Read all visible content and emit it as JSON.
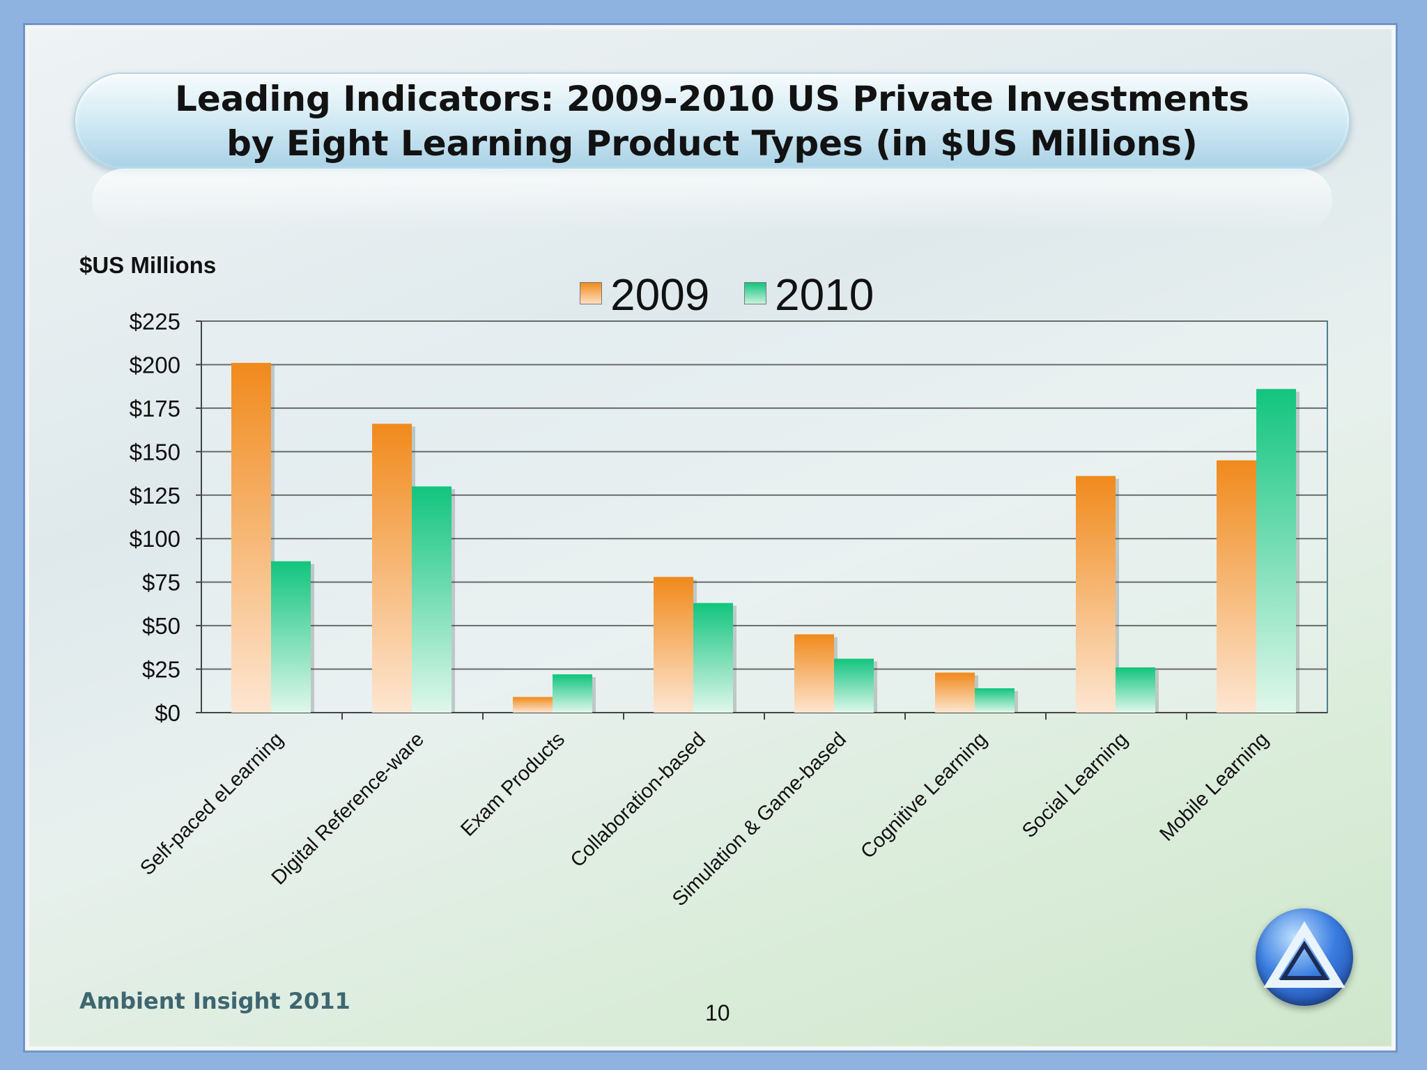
{
  "slide": {
    "title_line1": "Leading Indicators: 2009-2010 US Private Investments",
    "title_line2": "by Eight Learning Product Types (in $US Millions)",
    "y_unit_label": "$US Millions",
    "footer_credit": "Ambient Insight 2011",
    "page_number": "10"
  },
  "colors": {
    "series_2009": "#f08a1c",
    "series_2010": "#12c47e"
  },
  "chart_data": {
    "type": "bar",
    "title": "Leading Indicators: 2009-2010 US Private Investments by Eight Learning Product Types (in $US Millions)",
    "ylabel": "$US Millions",
    "xlabel": "",
    "ylim": [
      0,
      225
    ],
    "yticks": [
      0,
      25,
      50,
      75,
      100,
      125,
      150,
      175,
      200,
      225
    ],
    "ytick_labels": [
      "$0",
      "$25",
      "$50",
      "$75",
      "$100",
      "$125",
      "$150",
      "$175",
      "$200",
      "$225"
    ],
    "grid": true,
    "legend_position": "top-center",
    "categories": [
      "Self-paced eLearning",
      "Digital Reference-ware",
      "Exam Products",
      "Collaboration-based",
      "Simulation & Game-based",
      "Cognitive Learning",
      "Social Learning",
      "Mobile Learning"
    ],
    "series": [
      {
        "name": "2009",
        "values": [
          201,
          166,
          9,
          78,
          45,
          23,
          136,
          145
        ]
      },
      {
        "name": "2010",
        "values": [
          87,
          130,
          22,
          63,
          31,
          14,
          26,
          186
        ]
      }
    ]
  }
}
